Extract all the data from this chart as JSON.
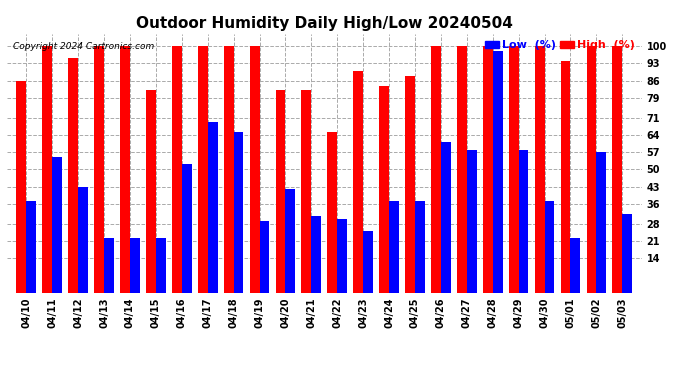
{
  "title": "Outdoor Humidity Daily High/Low 20240504",
  "copyright": "Copyright 2024 Cartronics.com",
  "dates": [
    "04/10",
    "04/11",
    "04/12",
    "04/13",
    "04/14",
    "04/15",
    "04/16",
    "04/17",
    "04/18",
    "04/19",
    "04/20",
    "04/21",
    "04/22",
    "04/23",
    "04/24",
    "04/25",
    "04/26",
    "04/27",
    "04/28",
    "04/29",
    "04/30",
    "05/01",
    "05/02",
    "05/03"
  ],
  "high": [
    86,
    100,
    95,
    100,
    100,
    82,
    100,
    100,
    100,
    100,
    82,
    82,
    65,
    90,
    84,
    88,
    100,
    100,
    100,
    100,
    100,
    94,
    100,
    100
  ],
  "low": [
    37,
    55,
    43,
    22,
    22,
    22,
    52,
    69,
    65,
    29,
    42,
    31,
    30,
    25,
    37,
    37,
    61,
    58,
    98,
    58,
    37,
    22,
    57,
    32
  ],
  "bar_color_high": "#ff0000",
  "bar_color_low": "#0000ff",
  "background_color": "#ffffff",
  "grid_color": "#aaaaaa",
  "yticks": [
    14,
    21,
    28,
    36,
    43,
    50,
    57,
    64,
    71,
    79,
    86,
    93,
    100
  ],
  "ylim": [
    0,
    105
  ],
  "title_fontsize": 11,
  "legend_low_color": "#0000ff",
  "legend_high_color": "#ff0000",
  "copyright_color": "#000000",
  "tick_fontsize": 7,
  "bar_width": 0.38
}
